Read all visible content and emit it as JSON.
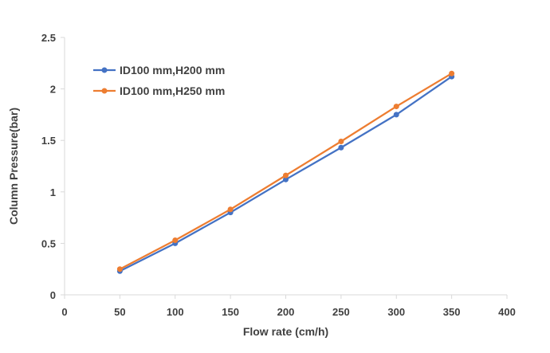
{
  "chart_data": {
    "type": "line",
    "title": "",
    "xlabel": "Flow rate  (cm/h)",
    "ylabel": "Column Pressure(bar)",
    "xlim": [
      0,
      400
    ],
    "ylim": [
      0,
      2.5
    ],
    "x_ticks": [
      0,
      50,
      100,
      150,
      200,
      250,
      300,
      350,
      400
    ],
    "x_tick_labels": [
      "0",
      "50",
      "100",
      "150",
      "200",
      "250",
      "300",
      "350",
      "400"
    ],
    "y_ticks": [
      0,
      0.5,
      1,
      1.5,
      2,
      2.5
    ],
    "y_tick_labels": [
      "0",
      "0.5",
      "1",
      "1.5",
      "2",
      "2.5"
    ],
    "grid": false,
    "legend_position": "top-left",
    "x": [
      50,
      100,
      150,
      200,
      250,
      300,
      350
    ],
    "series": [
      {
        "name": "ID100 mm,H200 mm",
        "color": "#4472C4",
        "values": [
          0.23,
          0.5,
          0.8,
          1.12,
          1.43,
          1.75,
          2.12
        ]
      },
      {
        "name": "ID100 mm,H250 mm",
        "color": "#ED7D31",
        "values": [
          0.25,
          0.53,
          0.83,
          1.16,
          1.49,
          1.83,
          2.15
        ]
      }
    ]
  }
}
